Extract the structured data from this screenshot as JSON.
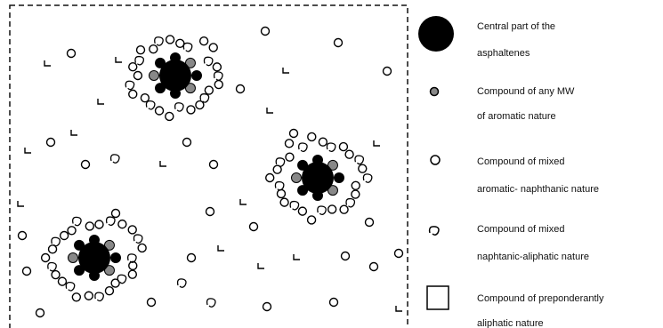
{
  "legend": [
    {
      "lines": [
        "Central part of the",
        "asphaltenes"
      ]
    },
    {
      "lines": [
        "Compound of any MW",
        "of aromatic nature"
      ]
    },
    {
      "lines": [
        "Compound of mixed",
        "aromatic- naphthanic nature"
      ]
    },
    {
      "lines": [
        "Compound of mixed",
        "naphtanic-aliphatic nature"
      ]
    },
    {
      "lines": [
        "Compound of preponderantly",
        "aliphatic nature"
      ]
    }
  ]
}
